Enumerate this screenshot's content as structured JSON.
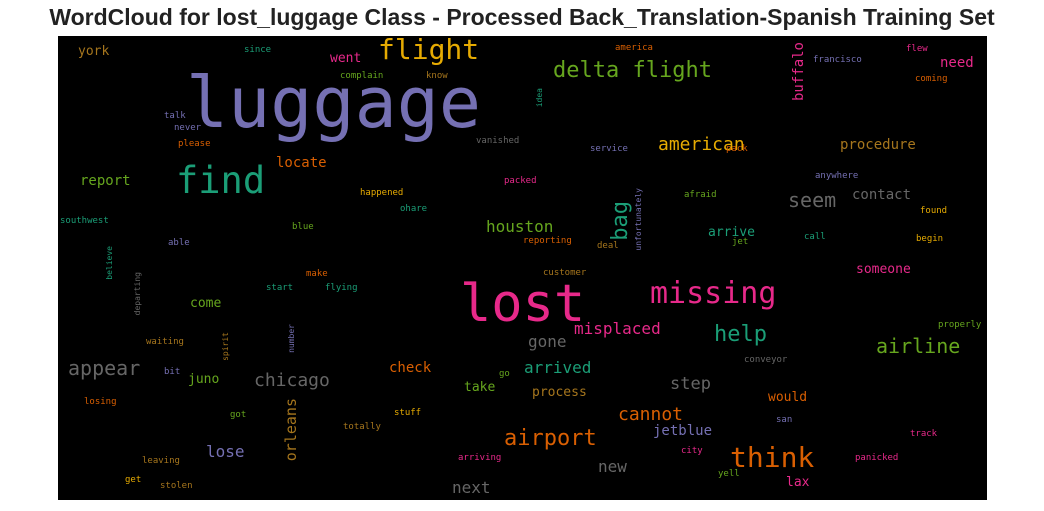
{
  "chart_data": {
    "type": "wordcloud",
    "title": "WordCloud for lost_luggage Class - Processed Back_Translation-Spanish Training Set",
    "background": "#000000",
    "palette": "Dark2",
    "words": [
      {
        "text": "luggage",
        "color": "#7570b3"
      },
      {
        "text": "lost",
        "color": "#e7298a"
      },
      {
        "text": "find",
        "color": "#1b9e77"
      },
      {
        "text": "missing",
        "color": "#e7298a"
      },
      {
        "text": "flight",
        "color": "#e6ab02"
      },
      {
        "text": "think",
        "color": "#d95f02"
      },
      {
        "text": "delta flight",
        "color": "#66a61e"
      },
      {
        "text": "airport",
        "color": "#d95f02"
      },
      {
        "text": "help",
        "color": "#1b9e77"
      },
      {
        "text": "bag",
        "color": "#1b9e77"
      },
      {
        "text": "american",
        "color": "#e6ab02"
      },
      {
        "text": "appear",
        "color": "#666666"
      },
      {
        "text": "airline",
        "color": "#66a61e"
      },
      {
        "text": "seem",
        "color": "#666666"
      },
      {
        "text": "chicago",
        "color": "#666666"
      },
      {
        "text": "cannot",
        "color": "#d95f02"
      },
      {
        "text": "misplaced",
        "color": "#e7298a"
      },
      {
        "text": "houston",
        "color": "#66a61e"
      },
      {
        "text": "step",
        "color": "#666666"
      },
      {
        "text": "gone",
        "color": "#666666"
      },
      {
        "text": "arrived",
        "color": "#1b9e77"
      },
      {
        "text": "new",
        "color": "#666666"
      },
      {
        "text": "next",
        "color": "#666666"
      },
      {
        "text": "lose",
        "color": "#7570b3"
      },
      {
        "text": "orleans",
        "color": "#a6761d"
      },
      {
        "text": "buffalo",
        "color": "#e7298a"
      },
      {
        "text": "procedure",
        "color": "#a6761d"
      },
      {
        "text": "locate",
        "color": "#d95f02"
      },
      {
        "text": "contact",
        "color": "#666666"
      },
      {
        "text": "report",
        "color": "#66a61e"
      },
      {
        "text": "need",
        "color": "#e7298a"
      },
      {
        "text": "jetblue",
        "color": "#7570b3"
      },
      {
        "text": "check",
        "color": "#d95f02"
      },
      {
        "text": "arrive",
        "color": "#1b9e77"
      },
      {
        "text": "someone",
        "color": "#e7298a"
      },
      {
        "text": "juno",
        "color": "#66a61e"
      },
      {
        "text": "take",
        "color": "#66a61e"
      },
      {
        "text": "process",
        "color": "#a6761d"
      },
      {
        "text": "would",
        "color": "#d95f02"
      },
      {
        "text": "lax",
        "color": "#e7298a"
      },
      {
        "text": "come",
        "color": "#66a61e"
      },
      {
        "text": "went",
        "color": "#e7298a"
      },
      {
        "text": "york",
        "color": "#a6761d"
      },
      {
        "text": "francisco",
        "color": "#7570b3"
      },
      {
        "text": "flew",
        "color": "#e7298a"
      },
      {
        "text": "america",
        "color": "#d95f02"
      },
      {
        "text": "coming",
        "color": "#d95f02"
      },
      {
        "text": "since",
        "color": "#1b9e77"
      },
      {
        "text": "complain",
        "color": "#66a61e"
      },
      {
        "text": "know",
        "color": "#a6761d"
      },
      {
        "text": "idea",
        "color": "#1b9e77"
      },
      {
        "text": "talk",
        "color": "#7570b3"
      },
      {
        "text": "never",
        "color": "#7570b3"
      },
      {
        "text": "please",
        "color": "#d95f02"
      },
      {
        "text": "vanished",
        "color": "#666666"
      },
      {
        "text": "service",
        "color": "#7570b3"
      },
      {
        "text": "pack",
        "color": "#d95f02"
      },
      {
        "text": "anywhere",
        "color": "#7570b3"
      },
      {
        "text": "packed",
        "color": "#e7298a"
      },
      {
        "text": "happened",
        "color": "#e6ab02"
      },
      {
        "text": "ohare",
        "color": "#1b9e77"
      },
      {
        "text": "afraid",
        "color": "#66a61e"
      },
      {
        "text": "unfortunately",
        "color": "#7570b3"
      },
      {
        "text": "found",
        "color": "#e6ab02"
      },
      {
        "text": "southwest",
        "color": "#1b9e77"
      },
      {
        "text": "blue",
        "color": "#66a61e"
      },
      {
        "text": "able",
        "color": "#7570b3"
      },
      {
        "text": "believe",
        "color": "#1b9e77"
      },
      {
        "text": "reporting",
        "color": "#d95f02"
      },
      {
        "text": "deal",
        "color": "#a6761d"
      },
      {
        "text": "jet",
        "color": "#66a61e"
      },
      {
        "text": "call",
        "color": "#1b9e77"
      },
      {
        "text": "begin",
        "color": "#e6ab02"
      },
      {
        "text": "make",
        "color": "#d95f02"
      },
      {
        "text": "customer",
        "color": "#a6761d"
      },
      {
        "text": "departing",
        "color": "#666666"
      },
      {
        "text": "start",
        "color": "#1b9e77"
      },
      {
        "text": "flying",
        "color": "#1b9e77"
      },
      {
        "text": "spirit",
        "color": "#a6761d"
      },
      {
        "text": "number",
        "color": "#7570b3"
      },
      {
        "text": "waiting",
        "color": "#a6761d"
      },
      {
        "text": "properly",
        "color": "#66a61e"
      },
      {
        "text": "conveyor",
        "color": "#666666"
      },
      {
        "text": "bit",
        "color": "#7570b3"
      },
      {
        "text": "go",
        "color": "#66a61e"
      },
      {
        "text": "losing",
        "color": "#d95f02"
      },
      {
        "text": "got",
        "color": "#66a61e"
      },
      {
        "text": "stuff",
        "color": "#e6ab02"
      },
      {
        "text": "totally",
        "color": "#a6761d"
      },
      {
        "text": "san",
        "color": "#7570b3"
      },
      {
        "text": "track",
        "color": "#e7298a"
      },
      {
        "text": "leaving",
        "color": "#a6761d"
      },
      {
        "text": "arriving",
        "color": "#e7298a"
      },
      {
        "text": "city",
        "color": "#e7298a"
      },
      {
        "text": "panicked",
        "color": "#e7298a"
      },
      {
        "text": "get",
        "color": "#e6ab02"
      },
      {
        "text": "stolen",
        "color": "#a6761d"
      },
      {
        "text": "yell",
        "color": "#66a61e"
      }
    ]
  }
}
